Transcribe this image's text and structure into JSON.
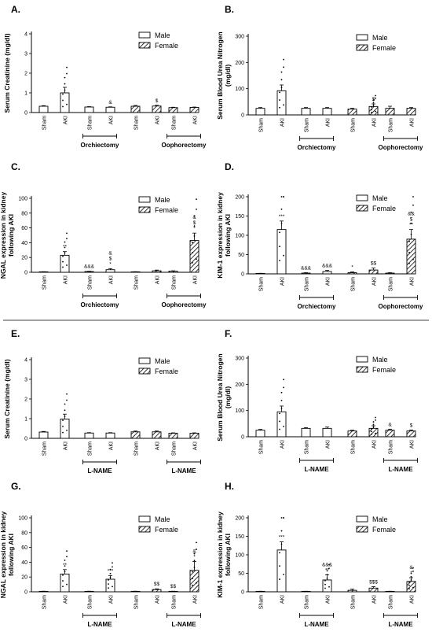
{
  "legend": {
    "male": "Male",
    "female": "Female"
  },
  "panels": [
    {
      "letter": "A.",
      "ylabel": [
        "Serum Creatinine (mg/dl)"
      ],
      "yticks": [
        "0",
        "1",
        "2",
        "3",
        "4"
      ],
      "legend": true
    },
    {
      "letter": "B.",
      "ylabel": [
        "Serum Blood Urea Nitrogen",
        "(mg/dl)"
      ],
      "yticks": [
        "0",
        "100",
        "200",
        "300"
      ],
      "legend": true
    },
    {
      "letter": "C.",
      "ylabel": [
        "NGAL expression in kidney",
        "following AKI"
      ],
      "yticks": [
        "0",
        "20",
        "40",
        "60",
        "80",
        "100"
      ],
      "legend": true
    },
    {
      "letter": "D.",
      "ylabel": [
        "KIM-1 expression in kidney",
        "following AKI"
      ],
      "yticks": [
        "0",
        "50",
        "100",
        "150",
        "200"
      ],
      "legend": true
    },
    {
      "letter": "E.",
      "ylabel": [
        "Serum Creatinine (mg/dl)"
      ],
      "yticks": [
        "0",
        "1",
        "2",
        "3",
        "4"
      ],
      "legend": true
    },
    {
      "letter": "F.",
      "ylabel": [
        "Serum Blood Urea Nitrogen",
        "(mg/dl)"
      ],
      "yticks": [
        "0",
        "100",
        "200",
        "300"
      ],
      "legend": true
    },
    {
      "letter": "G.",
      "ylabel": [
        "NGAL expression in kidney",
        "following AKI"
      ],
      "yticks": [
        "0",
        "20",
        "40",
        "60",
        "80",
        "100"
      ],
      "legend": true
    },
    {
      "letter": "H.",
      "ylabel": [
        "KIM-1 expression in kidney",
        "following AKI"
      ],
      "yticks": [
        "0",
        "50",
        "100",
        "150",
        "200"
      ],
      "legend": true
    }
  ],
  "chart_data": [
    {
      "type": "bar",
      "panel": "A.",
      "ylabel": "Serum Creatinine (mg/dl)",
      "ylim": [
        0,
        4
      ],
      "categories": [
        "Sham",
        "AKI",
        "Sham",
        "AKI",
        "Sham",
        "AKI",
        "Sham",
        "AKI"
      ],
      "sex": [
        "Male",
        "Male",
        "Male",
        "Male",
        "Female",
        "Female",
        "Female",
        "Female"
      ],
      "values": [
        0.32,
        1.0,
        0.28,
        0.27,
        0.32,
        0.33,
        0.25,
        0.26
      ],
      "errors": [
        0.03,
        0.28,
        0.02,
        0.02,
        0.04,
        0.04,
        0.02,
        0.02
      ],
      "annotations": [
        "",
        "",
        "",
        "&",
        "",
        "$",
        "",
        ""
      ],
      "group_labels": [
        {
          "text": "Orchiectomy",
          "from": 2,
          "to": 3
        },
        {
          "text": "Oophorectomy",
          "from": 6,
          "to": 7
        }
      ]
    },
    {
      "type": "bar",
      "panel": "B.",
      "ylabel": "Serum Blood Urea Nitrogen (mg/dl)",
      "ylim": [
        0,
        300
      ],
      "categories": [
        "Sham",
        "AKI",
        "Sham",
        "AKI",
        "Sham",
        "AKI",
        "Sham",
        "AKI"
      ],
      "sex": [
        "Male",
        "Male",
        "Male",
        "Male",
        "Female",
        "Female",
        "Female",
        "Female"
      ],
      "values": [
        25,
        92,
        25,
        25,
        22,
        32,
        25,
        25
      ],
      "errors": [
        3,
        22,
        3,
        3,
        3,
        10,
        8,
        3
      ],
      "annotations": [
        "",
        "",
        "",
        "",
        "",
        "$",
        "",
        ""
      ],
      "group_labels": [
        {
          "text": "Orchiectomy",
          "from": 2,
          "to": 3
        },
        {
          "text": "Oophorectomy",
          "from": 6,
          "to": 7
        }
      ]
    },
    {
      "type": "bar",
      "panel": "C.",
      "ylabel": "NGAL expression in kidney following AKI",
      "ylim": [
        0,
        100
      ],
      "categories": [
        "Sham",
        "AKI",
        "Sham",
        "AKI",
        "Sham",
        "AKI",
        "Sham",
        "AKI"
      ],
      "sex": [
        "Male",
        "Male",
        "Male",
        "Male",
        "Female",
        "Female",
        "Female",
        "Female"
      ],
      "values": [
        0.5,
        23,
        1,
        3.5,
        0.5,
        2,
        1.5,
        43
      ],
      "errors": [
        0.3,
        5,
        0.4,
        1.5,
        0.3,
        1,
        0.5,
        10
      ],
      "annotations": [
        "",
        "**",
        "&&&",
        "&|$|*",
        "",
        "",
        "",
        "&|$|*"
      ],
      "group_labels": [
        {
          "text": "Orchiectomy",
          "from": 2,
          "to": 3
        },
        {
          "text": "Oophorectomy",
          "from": 6,
          "to": 7
        }
      ]
    },
    {
      "type": "bar",
      "panel": "D.",
      "ylabel": "KIM-1 expression in kidney following AKI",
      "ylim": [
        0,
        200
      ],
      "categories": [
        "Sham",
        "AKI",
        "Sham",
        "AKI",
        "Sham",
        "AKI",
        "Sham",
        "AKI"
      ],
      "sex": [
        "Male",
        "Male",
        "Male",
        "Male",
        "Female",
        "Female",
        "Female",
        "Female"
      ],
      "values": [
        1,
        115,
        2,
        6,
        3,
        10,
        2,
        90
      ],
      "errors": [
        0.5,
        22,
        1,
        3,
        2,
        5,
        1,
        25
      ],
      "annotations": [
        "",
        "***",
        "&&&",
        "&&&",
        "*",
        "$$",
        "",
        "&&|$|**"
      ],
      "group_labels": [
        {
          "text": "Orchiectomy",
          "from": 2,
          "to": 3
        },
        {
          "text": "Oophorectomy",
          "from": 6,
          "to": 7
        }
      ]
    },
    {
      "type": "bar",
      "panel": "E.",
      "ylabel": "Serum Creatinine (mg/dl)",
      "ylim": [
        0,
        4
      ],
      "categories": [
        "Sham",
        "AKI",
        "Sham",
        "AKI",
        "Sham",
        "AKI",
        "Sham",
        "AKI"
      ],
      "sex": [
        "Male",
        "Male",
        "Male",
        "Male",
        "Female",
        "Female",
        "Female",
        "Female"
      ],
      "values": [
        0.32,
        0.98,
        0.27,
        0.27,
        0.33,
        0.33,
        0.26,
        0.26
      ],
      "errors": [
        0.03,
        0.25,
        0.02,
        0.02,
        0.04,
        0.04,
        0.02,
        0.02
      ],
      "annotations": [
        "",
        "",
        "",
        "",
        "",
        "",
        "",
        ""
      ],
      "group_labels": [
        {
          "text": "L-NAME",
          "from": 2,
          "to": 3
        },
        {
          "text": "L-NAME",
          "from": 6,
          "to": 7
        }
      ]
    },
    {
      "type": "bar",
      "panel": "F.",
      "ylabel": "Serum Blood Urea Nitrogen (mg/dl)",
      "ylim": [
        0,
        300
      ],
      "categories": [
        "Sham",
        "AKI",
        "Sham",
        "AKI",
        "Sham",
        "AKI",
        "Sham",
        "AKI"
      ],
      "sex": [
        "Male",
        "Male",
        "Male",
        "Male",
        "Female",
        "Female",
        "Female",
        "Female"
      ],
      "values": [
        25,
        95,
        32,
        32,
        22,
        32,
        25,
        22
      ],
      "errors": [
        3,
        22,
        3,
        5,
        3,
        10,
        4,
        4
      ],
      "annotations": [
        "",
        "",
        "",
        "",
        "",
        "",
        "&",
        "$"
      ],
      "group_labels": [
        {
          "text": "L-NAME",
          "from": 2,
          "to": 3
        },
        {
          "text": "L-NAME",
          "from": 6,
          "to": 7
        }
      ]
    },
    {
      "type": "bar",
      "panel": "G.",
      "ylabel": "NGAL expression in kidney following AKI",
      "ylim": [
        0,
        100
      ],
      "categories": [
        "Sham",
        "AKI",
        "Sham",
        "AKI",
        "Sham",
        "AKI",
        "Sham",
        "AKI"
      ],
      "sex": [
        "Male",
        "Male",
        "Male",
        "Male",
        "Female",
        "Female",
        "Female",
        "Female"
      ],
      "values": [
        0.5,
        24,
        0.5,
        17,
        0.5,
        3,
        0.5,
        29
      ],
      "errors": [
        0.3,
        6,
        0.3,
        5,
        0.3,
        1,
        0.3,
        12
      ],
      "annotations": [
        "",
        "**",
        "",
        "***",
        "",
        "$$",
        "$$",
        "&|*"
      ],
      "group_labels": [
        {
          "text": "L-NAME",
          "from": 2,
          "to": 3
        },
        {
          "text": "L-NAME",
          "from": 6,
          "to": 7
        }
      ]
    },
    {
      "type": "bar",
      "panel": "H.",
      "ylabel": "KIM-1 expression in kidney following AKI",
      "ylim": [
        0,
        200
      ],
      "categories": [
        "Sham",
        "AKI",
        "Sham",
        "AKI",
        "Sham",
        "AKI",
        "Sham",
        "AKI"
      ],
      "sex": [
        "Male",
        "Male",
        "Male",
        "Male",
        "Female",
        "Female",
        "Female",
        "Female"
      ],
      "values": [
        1,
        113,
        1,
        32,
        4,
        10,
        1,
        28
      ],
      "errors": [
        0.5,
        22,
        0.5,
        14,
        3,
        4,
        0.5,
        10
      ],
      "annotations": [
        "",
        "***",
        "",
        "&&&|**",
        "",
        "$$$",
        "",
        "&|*"
      ],
      "group_labels": [
        {
          "text": "L-NAME",
          "from": 2,
          "to": 3
        },
        {
          "text": "L-NAME",
          "from": 6,
          "to": 7
        }
      ]
    }
  ]
}
